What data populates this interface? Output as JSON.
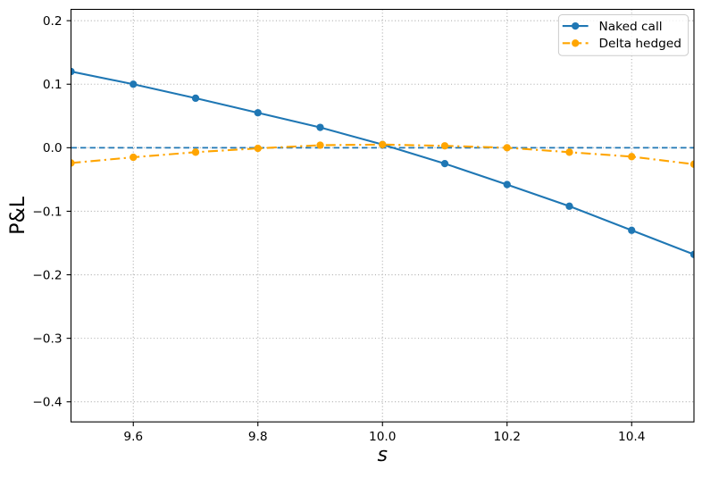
{
  "chart_data": {
    "type": "line",
    "title": "",
    "xlabel": "s",
    "ylabel": "P&L",
    "xlim": [
      9.5,
      10.5
    ],
    "ylim": [
      -0.4316,
      0.2178
    ],
    "xticks": [
      9.6,
      9.8,
      10.0,
      10.2,
      10.4
    ],
    "xtick_labels": [
      "9.6",
      "9.8",
      "10.0",
      "10.2",
      "10.4"
    ],
    "yticks": [
      0.2,
      0.1,
      0.0,
      -0.1,
      -0.2,
      -0.3,
      -0.4
    ],
    "ytick_labels": [
      "0.2",
      "0.1",
      "0.0",
      "−0.1",
      "−0.2",
      "−0.3",
      "−0.4"
    ],
    "grid": true,
    "grid_color": "#b0b0b0",
    "grid_style": "dotted",
    "legend_position": "upper right",
    "x": [
      9.5,
      9.6,
      9.7,
      9.8,
      9.9,
      10.0,
      10.1,
      10.2,
      10.3,
      10.4,
      10.5
    ],
    "series": [
      {
        "name": "Naked call",
        "color": "#1f77b4",
        "linestyle": "solid",
        "marker": "circle",
        "values": [
          0.12,
          0.1,
          0.078,
          0.055,
          0.032,
          0.005,
          -0.025,
          -0.058,
          -0.092,
          -0.13,
          -0.168
        ]
      },
      {
        "name": "Delta hedged",
        "color": "#ffa500",
        "linestyle": "dashdot",
        "marker": "circle",
        "values": [
          -0.024,
          -0.015,
          -0.007,
          -0.001,
          0.004,
          0.005,
          0.003,
          0.0,
          -0.007,
          -0.014,
          -0.026
        ]
      }
    ],
    "reference_line": {
      "y": 0.0,
      "color": "#1f77b4",
      "linestyle": "dashed"
    },
    "legend": {
      "labels": [
        "Naked call",
        "Delta hedged"
      ]
    }
  }
}
